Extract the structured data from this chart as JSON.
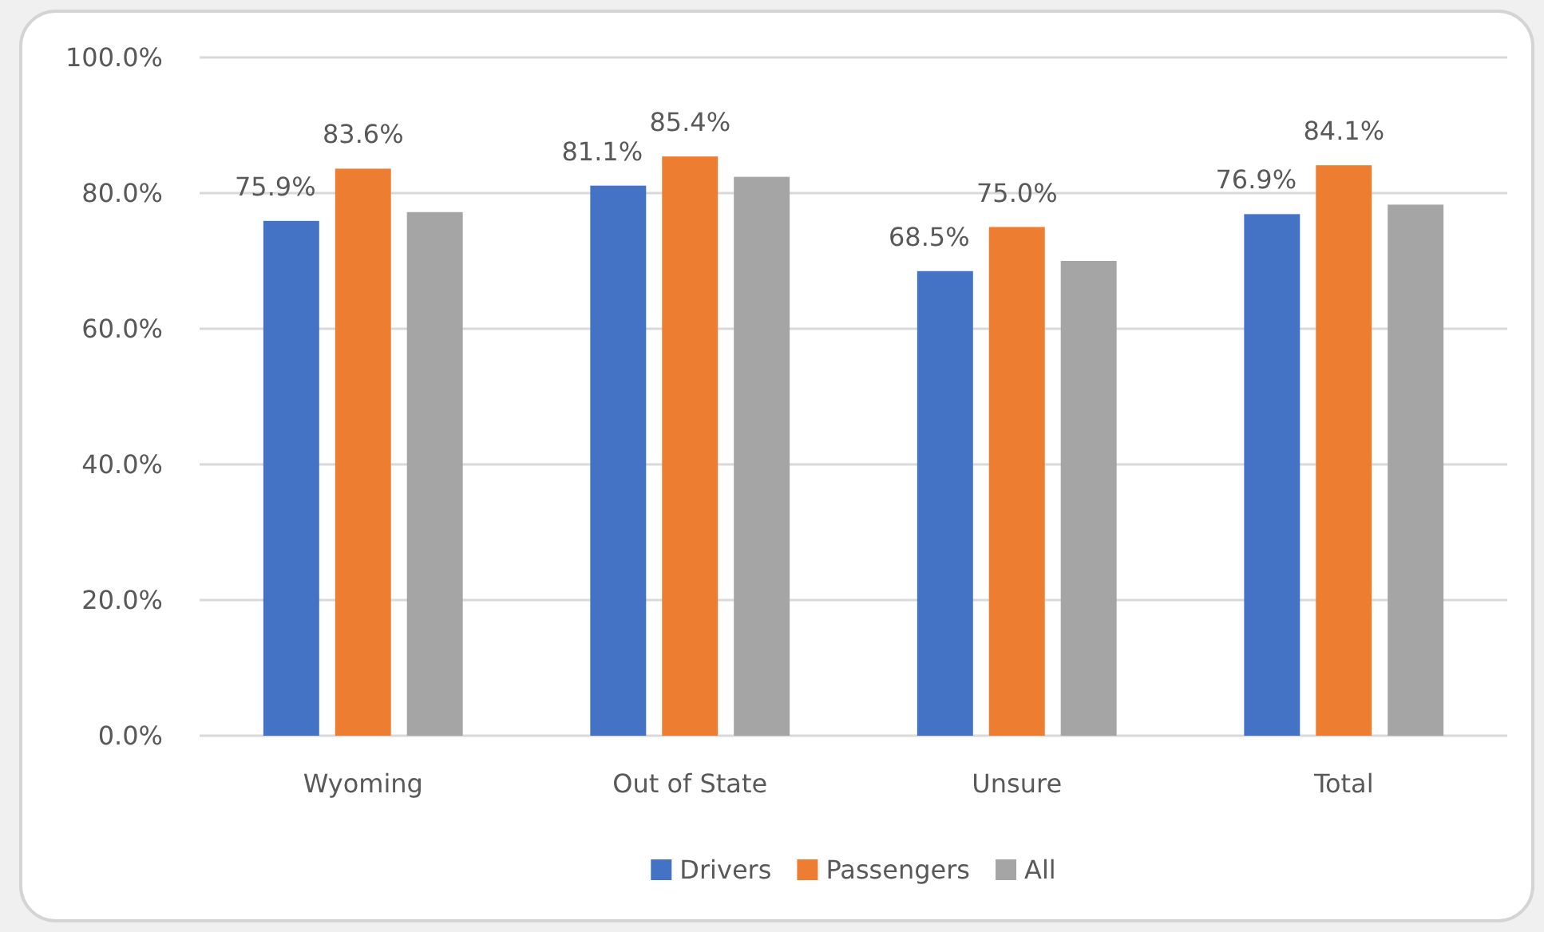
{
  "chart_data": {
    "type": "bar",
    "categories": [
      "Wyoming",
      "Out of State",
      "Unsure",
      "Total"
    ],
    "series": [
      {
        "name": "Drivers",
        "color": "#4472c4",
        "values": [
          75.9,
          81.1,
          68.5,
          76.9
        ],
        "value_labels": [
          "75.9%",
          "81.1%",
          "68.5%",
          "76.9%"
        ]
      },
      {
        "name": "Passengers",
        "color": "#ed7d31",
        "values": [
          83.6,
          85.4,
          75.0,
          84.1
        ],
        "value_labels": [
          "83.6%",
          "85.4%",
          "75.0%",
          "84.1%"
        ]
      },
      {
        "name": "All",
        "color": "#a5a5a5",
        "values": [
          77.2,
          82.4,
          70.0,
          78.3
        ]
      }
    ],
    "ylim": [
      0,
      100
    ],
    "yticks": [
      {
        "value": 0,
        "label": "0.0%"
      },
      {
        "value": 20,
        "label": "20.0%"
      },
      {
        "value": 40,
        "label": "40.0%"
      },
      {
        "value": 60,
        "label": "60.0%"
      },
      {
        "value": 80,
        "label": "80.0%"
      },
      {
        "value": 100,
        "label": "100.0%"
      }
    ],
    "grid": "y",
    "legend": "bottom"
  }
}
